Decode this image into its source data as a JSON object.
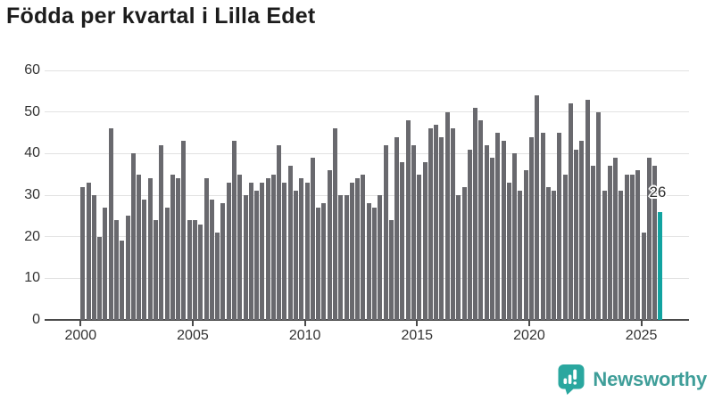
{
  "title": "Födda per kvartal i Lilla Edet",
  "footer": {
    "brand": "Newsworthy",
    "logo_icon": "newsworthy-speech-bubble-bar-chart-icon"
  },
  "colors": {
    "title": "#1c1c1c",
    "bar": "#69696e",
    "highlight": "#11a3a0",
    "gridline": "#e2e2e2",
    "axis": "#4a4a4a",
    "tick_label": "#333333",
    "brand": "#3f9e99"
  },
  "chart_data": {
    "type": "bar",
    "title": "Födda per kvartal i Lilla Edet",
    "xlabel": "",
    "ylabel": "",
    "x_start": "2000-Q1",
    "x_end": "2025-Q4",
    "frequency": "quarterly",
    "xticks": [
      2000,
      2005,
      2010,
      2015,
      2020,
      2025
    ],
    "yticks": [
      0,
      10,
      20,
      30,
      40,
      50,
      60
    ],
    "ylim": [
      0,
      60
    ],
    "grid": "horizontal",
    "legend": "none",
    "highlight_last": true,
    "last_value_label": "26",
    "values": [
      32,
      33,
      30,
      20,
      27,
      46,
      24,
      19,
      25,
      40,
      35,
      29,
      34,
      24,
      42,
      27,
      35,
      34,
      43,
      24,
      24,
      23,
      34,
      29,
      21,
      28,
      33,
      43,
      35,
      30,
      33,
      31,
      33,
      34,
      35,
      42,
      33,
      37,
      31,
      34,
      33,
      39,
      27,
      28,
      36,
      46,
      30,
      30,
      33,
      34,
      35,
      28,
      27,
      30,
      42,
      24,
      44,
      38,
      48,
      42,
      35,
      38,
      46,
      47,
      44,
      50,
      46,
      30,
      32,
      41,
      51,
      48,
      42,
      39,
      45,
      43,
      33,
      40,
      31,
      36,
      44,
      54,
      45,
      32,
      31,
      45,
      35,
      52,
      41,
      43,
      53,
      37,
      50,
      31,
      37,
      39,
      31,
      35,
      35,
      36,
      21,
      39,
      37,
      26
    ]
  }
}
